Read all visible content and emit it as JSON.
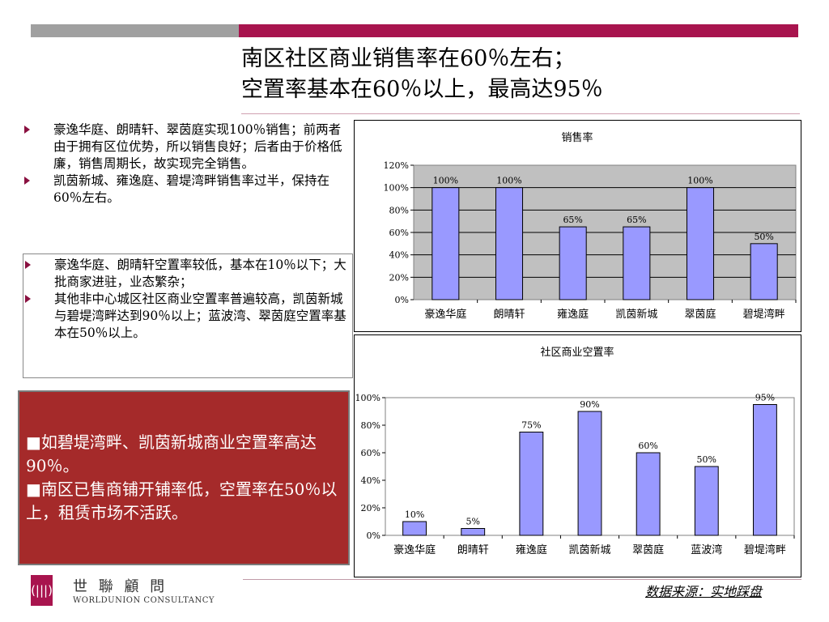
{
  "title_lines": [
    "南区社区商业销售率在60％左右；",
    "空置率基本在60％以上，最高达95％"
  ],
  "notes_group1": [
    "豪逸华庭、朗晴轩、翠茵庭实现100％销售；前两者由于拥有区位优势，所以销售良好；后者由于价格低廉，销售周期长，故实现完全销售。",
    "凯茵新城、雍逸庭、碧堤湾畔销售率过半，保持在60％左右。"
  ],
  "notes_group2": [
    "豪逸华庭、朗晴轩空置率较低，基本在10％以下；大批商家进驻，业态繁杂；",
    "其他非中心城区社区商业空置率普遍较高，凯茵新城与碧堤湾畔达到90％以上；蓝波湾、翠茵庭空置率基本在50％以上。"
  ],
  "highlight": [
    "■如碧堤湾畔、凯茵新城商业空置率高达90％。",
    "■南区已售商铺开铺率低，空置率在50％以上，租赁市场不活跃。"
  ],
  "logo": {
    "cn": "世 聯 顧 問",
    "en": "WORLDUNION CONSULTANCY",
    "mark": "(|||)"
  },
  "source": "数据来源：实地踩盘",
  "colors": {
    "accent": "#a8144e",
    "bar_fill": "#9999ff",
    "plot_bg": "#c0c0c0",
    "highlight_bg": "#a52a2a"
  },
  "chart_data": [
    {
      "type": "bar",
      "title": "销售率",
      "categories": [
        "豪逸华庭",
        "朗晴轩",
        "雍逸庭",
        "凯茵新城",
        "翠茵庭",
        "碧堤湾畔"
      ],
      "values": [
        100,
        100,
        65,
        65,
        100,
        50
      ],
      "value_labels": [
        "100%",
        "100%",
        "65%",
        "65%",
        "100%",
        "50%"
      ],
      "yticks": [
        "0%",
        "20%",
        "40%",
        "60%",
        "80%",
        "100%",
        "120%"
      ],
      "ylim": [
        0,
        120
      ],
      "grid": true,
      "plot_background": "gray"
    },
    {
      "type": "bar",
      "title": "社区商业空置率",
      "categories": [
        "豪逸华庭",
        "朗晴轩",
        "雍逸庭",
        "凯茵新城",
        "翠茵庭",
        "蓝波湾",
        "碧堤湾畔"
      ],
      "values": [
        10,
        5,
        75,
        90,
        60,
        50,
        95
      ],
      "value_labels": [
        "10%",
        "5%",
        "75%",
        "90%",
        "60%",
        "50%",
        "95%"
      ],
      "yticks": [
        "0%",
        "20%",
        "40%",
        "60%",
        "80%",
        "100%"
      ],
      "ylim": [
        0,
        100
      ],
      "grid": false,
      "plot_background": "white"
    }
  ]
}
